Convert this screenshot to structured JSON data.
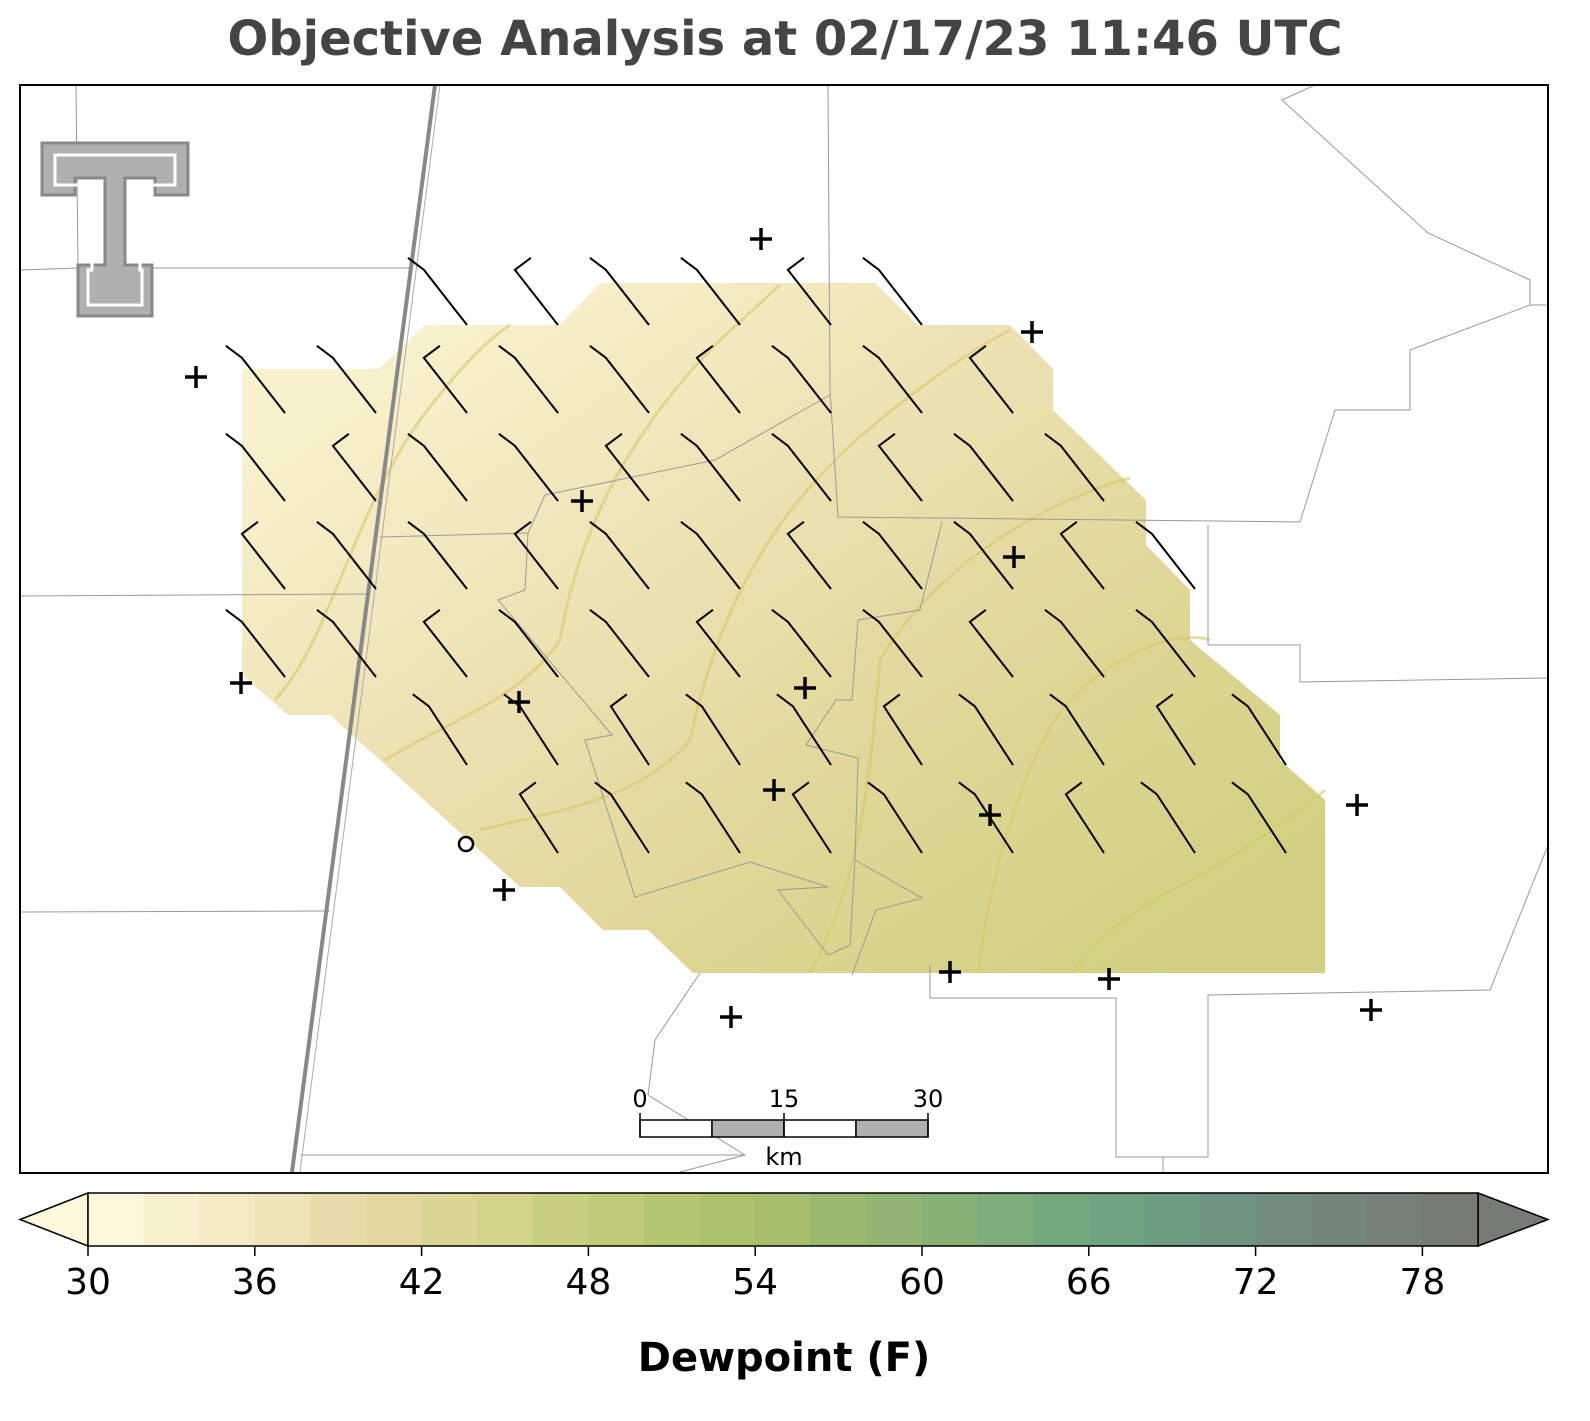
{
  "title": "Objective Analysis at 02/17/23 11:46 UTC",
  "colorbar": {
    "label": "Dewpoint (F)",
    "lim": [
      30,
      80
    ],
    "ticks": [
      30,
      36,
      42,
      48,
      54,
      60,
      66,
      72,
      78
    ],
    "colors": [
      "#fbf8dc",
      "#f7f1cf",
      "#f3eac3",
      "#eee2b6",
      "#e9dba9",
      "#e3d69f",
      "#dbd595",
      "#d3d38c",
      "#c9cf82",
      "#bfcb78",
      "#b5c671",
      "#adc16c",
      "#a5bd6c",
      "#9bb86f",
      "#92b574",
      "#88b178",
      "#7fad7b",
      "#76a87e",
      "#6ea281",
      "#6c9b82",
      "#6f9481",
      "#728d7f",
      "#74867c",
      "#767f79",
      "#777a75"
    ]
  },
  "scale_bar": {
    "ticks": [
      0,
      15,
      30
    ],
    "unit": "km"
  }
}
